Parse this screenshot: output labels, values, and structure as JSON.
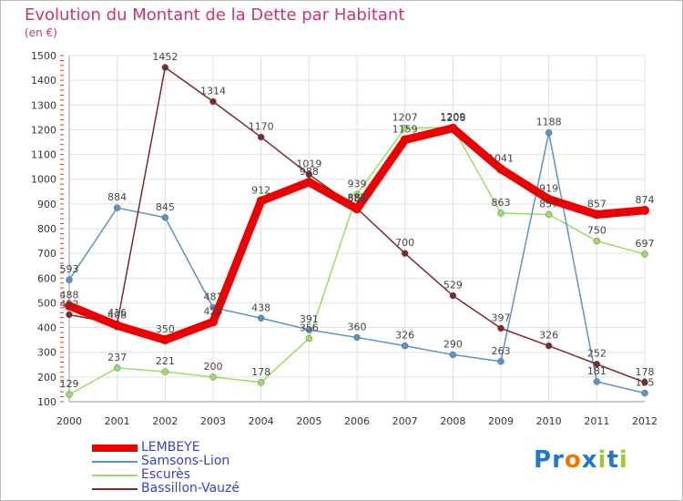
{
  "chart_data": {
    "type": "line",
    "title": "Evolution du Montant de la Dette par Habitant",
    "subtitle": "(en €)",
    "x": [
      "2000",
      "2001",
      "2002",
      "2003",
      "2004",
      "2005",
      "2006",
      "2007",
      "2008",
      "2009",
      "2010",
      "2011",
      "2012"
    ],
    "ylim": [
      100,
      1500
    ],
    "yticks": [
      100,
      200,
      300,
      400,
      500,
      600,
      700,
      800,
      900,
      1000,
      1100,
      1200,
      1300,
      1400,
      1500
    ],
    "grid": true,
    "legend_position": "bottom-left",
    "series": [
      {
        "name": "LEMBEYE",
        "color": "#ee0000",
        "values": [
          488,
          408,
          350,
          423,
          912,
          988,
          880,
          1159,
          1206,
          1041,
          919,
          857,
          874
        ]
      },
      {
        "name": "Samsons-Lion",
        "color": "#5a93c8",
        "values": [
          593,
          884,
          845,
          481,
          438,
          391,
          360,
          326,
          290,
          263,
          1188,
          181,
          135
        ]
      },
      {
        "name": "Escurès",
        "color": "#99dd66",
        "values": [
          129,
          237,
          221,
          200,
          178,
          356,
          939,
          1207,
          1209,
          863,
          857,
          750,
          697
        ]
      },
      {
        "name": "Bassillon-Vauzé",
        "color": "#7a2a2a",
        "values": [
          452,
          416,
          1452,
          1314,
          1170,
          1019,
          882,
          700,
          529,
          397,
          326,
          252,
          178
        ]
      }
    ]
  },
  "brand": {
    "letters": [
      {
        "ch": "P",
        "color": "#2277cc"
      },
      {
        "ch": "r",
        "color": "#2277cc"
      },
      {
        "ch": "o",
        "color": "#ee7700"
      },
      {
        "ch": "x",
        "color": "#2277cc"
      },
      {
        "ch": "i",
        "color": "#99cc33"
      },
      {
        "ch": "t",
        "color": "#2277cc"
      },
      {
        "ch": "i",
        "color": "#99cc33"
      }
    ]
  }
}
